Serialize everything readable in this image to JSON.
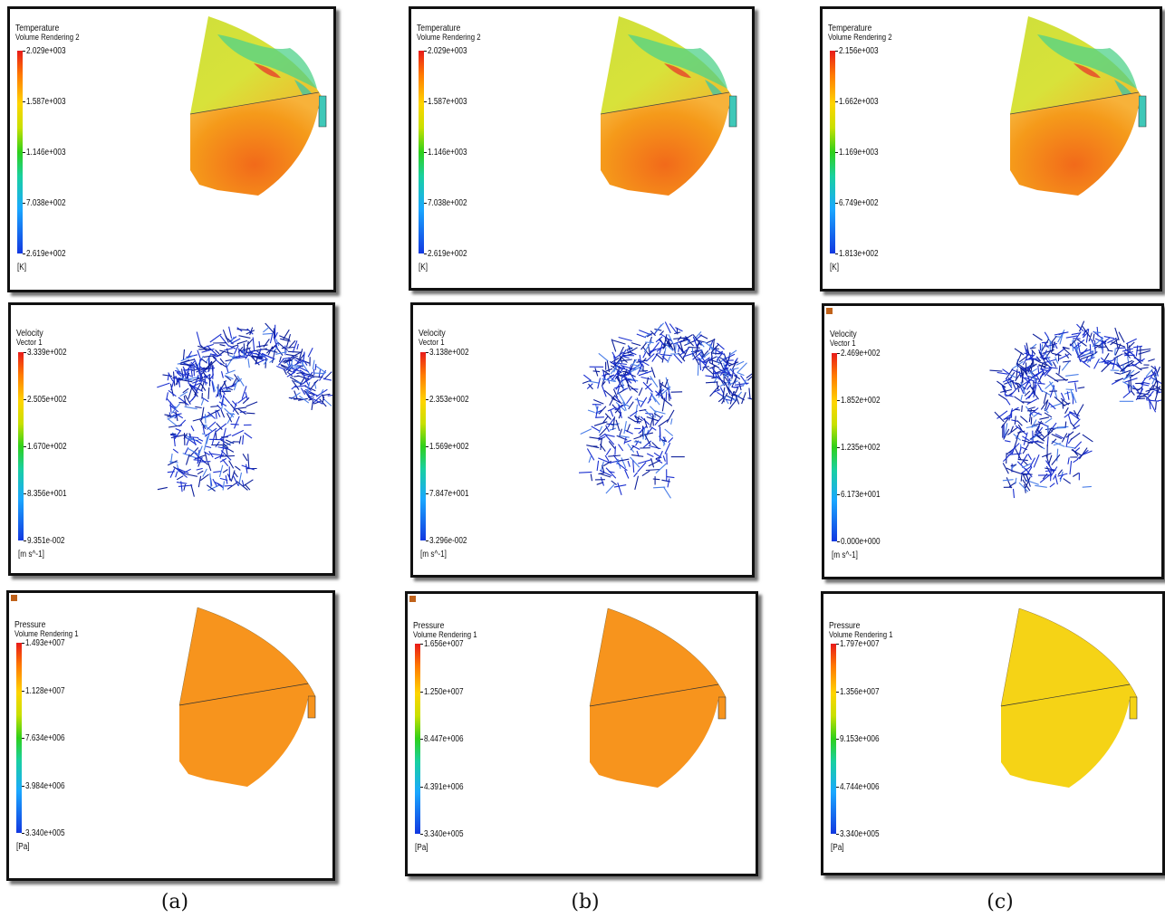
{
  "columns": [
    {
      "caption": "(a)",
      "panels": [
        {
          "title": "Temperature",
          "subtitle": "Volume Rendering 2",
          "ticks": [
            "2.029e+003",
            "1.587e+003",
            "1.146e+003",
            "7.038e+002",
            "2.619e+002"
          ],
          "unit": "[K]"
        },
        {
          "title": "Velocity",
          "subtitle": "Vector 1",
          "ticks": [
            "3.339e+002",
            "2.505e+002",
            "1.670e+002",
            "8.356e+001",
            "9.351e-002"
          ],
          "unit": "[m s^-1]"
        },
        {
          "title": "Pressure",
          "subtitle": "Volume Rendering 1",
          "ticks": [
            "1.493e+007",
            "1.128e+007",
            "7.634e+006",
            "3.984e+006",
            "3.340e+005"
          ],
          "unit": "[Pa]"
        }
      ]
    },
    {
      "caption": "(b)",
      "panels": [
        {
          "title": "Temperature",
          "subtitle": "Volume Rendering 2",
          "ticks": [
            "2.029e+003",
            "1.587e+003",
            "1.146e+003",
            "7.038e+002",
            "2.619e+002"
          ],
          "unit": "[K]"
        },
        {
          "title": "Velocity",
          "subtitle": "Vector 1",
          "ticks": [
            "3.138e+002",
            "2.353e+002",
            "1.569e+002",
            "7.847e+001",
            "3.296e-002"
          ],
          "unit": "[m s^-1]"
        },
        {
          "title": "Pressure",
          "subtitle": "Volume Rendering 1",
          "ticks": [
            "1.656e+007",
            "1.250e+007",
            "8.447e+006",
            "4.391e+006",
            "3.340e+005"
          ],
          "unit": "[Pa]"
        }
      ]
    },
    {
      "caption": "(c)",
      "panels": [
        {
          "title": "Temperature",
          "subtitle": "Volume Rendering 2",
          "ticks": [
            "2.156e+003",
            "1.662e+003",
            "1.169e+003",
            "6.749e+002",
            "1.813e+002"
          ],
          "unit": "[K]"
        },
        {
          "title": "Velocity",
          "subtitle": "Vector 1",
          "ticks": [
            "2.469e+002",
            "1.852e+002",
            "1.235e+002",
            "6.173e+001",
            "0.000e+000"
          ],
          "unit": "[m s^-1]"
        },
        {
          "title": "Pressure",
          "subtitle": "Volume Rendering 1",
          "ticks": [
            "1.797e+007",
            "1.356e+007",
            "9.153e+006",
            "4.744e+006",
            "3.340e+005"
          ],
          "unit": "[Pa]"
        }
      ]
    }
  ],
  "colors": {
    "temperature_body": "#f59a1a",
    "temperature_cap": "#d8e23a",
    "pressure_ab": "#f7941d",
    "pressure_c": "#f5d316",
    "vector": "#1a2fd0",
    "corner_marker": "#c0621a"
  }
}
